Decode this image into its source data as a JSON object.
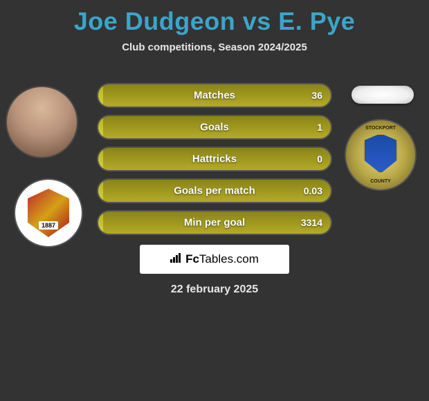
{
  "header": {
    "title": "Joe Dudgeon vs E. Pye",
    "subtitle": "Club competitions, Season 2024/2025",
    "title_color": "#3aa6c9"
  },
  "avatars": {
    "left_player_alt": "Joe Dudgeon",
    "right_player_alt": "E. Pye"
  },
  "crests": {
    "left_alt": "Barnsley FC",
    "left_year": "1887",
    "right_alt": "Stockport County",
    "right_top": "STOCKPORT",
    "right_bottom": "COUNTY"
  },
  "stats": {
    "bar_bg_color_dark": "#8a8419",
    "bar_bg_color_light": "#b3ab26",
    "bar_fill_color_top": "#b8b22a",
    "bar_fill_color_bottom": "#d6ce3a",
    "rows": [
      {
        "label": "Matches",
        "right_value": "36",
        "fill_percent": 2
      },
      {
        "label": "Goals",
        "right_value": "1",
        "fill_percent": 2
      },
      {
        "label": "Hattricks",
        "right_value": "0",
        "fill_percent": 2
      },
      {
        "label": "Goals per match",
        "right_value": "0.03",
        "fill_percent": 2
      },
      {
        "label": "Min per goal",
        "right_value": "3314",
        "fill_percent": 2
      }
    ]
  },
  "footer": {
    "logo_prefix": "Fc",
    "logo_suffix": "Tables.com",
    "date": "22 february 2025"
  }
}
